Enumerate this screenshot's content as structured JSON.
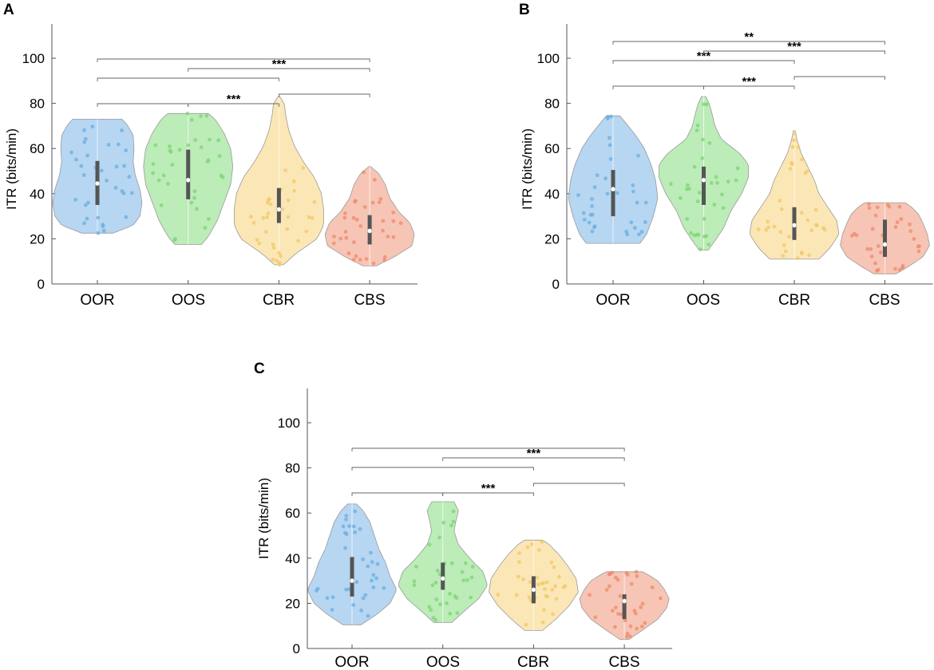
{
  "figure": {
    "panels": [
      "A",
      "B",
      "C"
    ],
    "categories": [
      "OOR",
      "OOS",
      "CBR",
      "CBS"
    ],
    "colors": {
      "OOR": "#9ec8ee",
      "OOS": "#a6e6a0",
      "CBR": "#fadf9e",
      "CBS": "#f4b29c",
      "OOR_dot": "#6aaee0",
      "OOS_dot": "#7dd474",
      "CBR_dot": "#f2c866",
      "CBS_dot": "#ec8a6c",
      "box": "#555555",
      "axis": "#555555",
      "bracket": "#666666"
    }
  },
  "chart_data": [
    {
      "panel": "A",
      "type": "violin",
      "title": "",
      "xlabel": "",
      "ylabel": "ITR (bits/min)",
      "ylim": [
        0,
        115
      ],
      "yticks": [
        0,
        20,
        40,
        60,
        80,
        100
      ],
      "categories": [
        "OOR",
        "OOS",
        "CBR",
        "CBS"
      ],
      "series": [
        {
          "name": "OOR",
          "min": 22.5,
          "q1": 35,
          "median": 44.5,
          "q3": 54.5,
          "max": 73,
          "profile": [
            [
              22.5,
              0.35
            ],
            [
              26,
              0.8
            ],
            [
              30,
              0.95
            ],
            [
              36,
              1
            ],
            [
              42,
              0.95
            ],
            [
              48,
              0.85
            ],
            [
              54,
              0.8
            ],
            [
              60,
              0.82
            ],
            [
              66,
              0.8
            ],
            [
              71,
              0.65
            ],
            [
              73,
              0.55
            ]
          ]
        },
        {
          "name": "OOS",
          "min": 17.5,
          "q1": 37.5,
          "median": 46,
          "q3": 59.5,
          "max": 75.5,
          "profile": [
            [
              17.5,
              0.3
            ],
            [
              21,
              0.45
            ],
            [
              28,
              0.65
            ],
            [
              36,
              0.8
            ],
            [
              44,
              0.95
            ],
            [
              52,
              1
            ],
            [
              60,
              0.95
            ],
            [
              67,
              0.8
            ],
            [
              73,
              0.6
            ],
            [
              75.5,
              0.45
            ]
          ]
        },
        {
          "name": "CBR",
          "min": 8.5,
          "q1": 27,
          "median": 33,
          "q3": 42.5,
          "max": 83,
          "profile": [
            [
              8.5,
              0.1
            ],
            [
              13,
              0.35
            ],
            [
              20,
              0.85
            ],
            [
              26,
              1
            ],
            [
              33,
              1
            ],
            [
              40,
              0.95
            ],
            [
              47,
              0.8
            ],
            [
              54,
              0.55
            ],
            [
              61,
              0.35
            ],
            [
              68,
              0.22
            ],
            [
              75,
              0.15
            ],
            [
              80,
              0.12
            ],
            [
              83,
              0.02
            ]
          ]
        },
        {
          "name": "CBS",
          "min": 8,
          "q1": 17.5,
          "median": 23.5,
          "q3": 30.5,
          "max": 52,
          "profile": [
            [
              8,
              0.15
            ],
            [
              12,
              0.55
            ],
            [
              17,
              0.95
            ],
            [
              22,
              1
            ],
            [
              27,
              0.9
            ],
            [
              32,
              0.65
            ],
            [
              38,
              0.45
            ],
            [
              44,
              0.35
            ],
            [
              49,
              0.2
            ],
            [
              52,
              0.02
            ]
          ]
        }
      ],
      "brackets": [
        {
          "from": "OOR",
          "to": "OOS",
          "label": ""
        },
        {
          "from": "OOS",
          "to": "CBR",
          "label": "***"
        },
        {
          "from": "CBR",
          "to": "CBS",
          "label": ""
        },
        {
          "from": "OOR",
          "to": "CBR",
          "label": ""
        },
        {
          "from": "OOS",
          "to": "CBS",
          "label": "***"
        },
        {
          "from": "OOR",
          "to": "CBS",
          "label": ""
        }
      ]
    },
    {
      "panel": "B",
      "type": "violin",
      "title": "",
      "xlabel": "",
      "ylabel": "ITR (bits/min)",
      "ylim": [
        0,
        115
      ],
      "yticks": [
        0,
        20,
        40,
        60,
        80,
        100
      ],
      "categories": [
        "OOR",
        "OOS",
        "CBR",
        "CBS"
      ],
      "series": [
        {
          "name": "OOR",
          "min": 18,
          "q1": 30,
          "median": 42,
          "q3": 50.5,
          "max": 74.5,
          "profile": [
            [
              18,
              0.6
            ],
            [
              22,
              0.75
            ],
            [
              30,
              0.9
            ],
            [
              38,
              1
            ],
            [
              46,
              0.95
            ],
            [
              53,
              0.85
            ],
            [
              60,
              0.7
            ],
            [
              66,
              0.5
            ],
            [
              71,
              0.3
            ],
            [
              74.5,
              0.15
            ]
          ]
        },
        {
          "name": "OOS",
          "min": 15,
          "q1": 35,
          "median": 46,
          "q3": 52,
          "max": 83,
          "profile": [
            [
              15,
              0.1
            ],
            [
              19,
              0.25
            ],
            [
              25,
              0.45
            ],
            [
              32,
              0.6
            ],
            [
              40,
              0.85
            ],
            [
              47,
              1
            ],
            [
              53,
              1
            ],
            [
              58,
              0.8
            ],
            [
              64,
              0.4
            ],
            [
              70,
              0.25
            ],
            [
              76,
              0.18
            ],
            [
              80,
              0.12
            ],
            [
              83,
              0.05
            ]
          ]
        },
        {
          "name": "CBR",
          "min": 11,
          "q1": 19.5,
          "median": 26,
          "q3": 34,
          "max": 68,
          "profile": [
            [
              11,
              0.55
            ],
            [
              16,
              0.8
            ],
            [
              22,
              1
            ],
            [
              28,
              0.95
            ],
            [
              34,
              0.75
            ],
            [
              40,
              0.55
            ],
            [
              46,
              0.45
            ],
            [
              52,
              0.3
            ],
            [
              58,
              0.15
            ],
            [
              64,
              0.06
            ],
            [
              68,
              0.02
            ]
          ]
        },
        {
          "name": "CBS",
          "min": 4.5,
          "q1": 12,
          "median": 17.5,
          "q3": 28.5,
          "max": 36,
          "profile": [
            [
              4.5,
              0.25
            ],
            [
              8,
              0.55
            ],
            [
              12,
              0.85
            ],
            [
              17,
              1
            ],
            [
              22,
              0.95
            ],
            [
              27,
              0.85
            ],
            [
              31,
              0.75
            ],
            [
              34,
              0.6
            ],
            [
              36,
              0.45
            ]
          ]
        }
      ],
      "brackets": [
        {
          "from": "OOR",
          "to": "OOS",
          "label": ""
        },
        {
          "from": "OOS",
          "to": "CBR",
          "label": "***"
        },
        {
          "from": "CBR",
          "to": "CBS",
          "label": ""
        },
        {
          "from": "OOR",
          "to": "CBR",
          "label": "***"
        },
        {
          "from": "OOS",
          "to": "CBS",
          "label": "***"
        },
        {
          "from": "OOR",
          "to": "CBS",
          "label": "**"
        }
      ]
    },
    {
      "panel": "C",
      "type": "violin",
      "title": "",
      "xlabel": "",
      "ylabel": "ITR (bits/min)",
      "ylim": [
        0,
        115
      ],
      "yticks": [
        0,
        20,
        40,
        60,
        80,
        100
      ],
      "categories": [
        "OOR",
        "OOS",
        "CBR",
        "CBS"
      ],
      "series": [
        {
          "name": "OOR",
          "min": 10.5,
          "q1": 23,
          "median": 30,
          "q3": 40.5,
          "max": 64,
          "profile": [
            [
              10.5,
              0.2
            ],
            [
              15,
              0.55
            ],
            [
              20,
              0.85
            ],
            [
              26,
              1
            ],
            [
              32,
              0.85
            ],
            [
              38,
              0.75
            ],
            [
              44,
              0.6
            ],
            [
              50,
              0.5
            ],
            [
              56,
              0.4
            ],
            [
              61,
              0.25
            ],
            [
              64,
              0.1
            ]
          ]
        },
        {
          "name": "OOS",
          "min": 11.5,
          "q1": 26,
          "median": 31,
          "q3": 38,
          "max": 65,
          "profile": [
            [
              11.5,
              0.2
            ],
            [
              16,
              0.45
            ],
            [
              22,
              0.8
            ],
            [
              28,
              1
            ],
            [
              34,
              0.9
            ],
            [
              40,
              0.6
            ],
            [
              46,
              0.35
            ],
            [
              52,
              0.25
            ],
            [
              57,
              0.3
            ],
            [
              61,
              0.35
            ],
            [
              65,
              0.25
            ]
          ]
        },
        {
          "name": "CBR",
          "min": 8,
          "q1": 20,
          "median": 26,
          "q3": 32,
          "max": 48,
          "profile": [
            [
              8,
              0.2
            ],
            [
              13,
              0.5
            ],
            [
              19,
              0.8
            ],
            [
              25,
              1
            ],
            [
              31,
              0.95
            ],
            [
              37,
              0.75
            ],
            [
              42,
              0.55
            ],
            [
              46,
              0.35
            ],
            [
              48,
              0.2
            ]
          ]
        },
        {
          "name": "CBS",
          "min": 4,
          "q1": 13,
          "median": 21,
          "q3": 24,
          "max": 34,
          "profile": [
            [
              4,
              0.1
            ],
            [
              8,
              0.4
            ],
            [
              13,
              0.75
            ],
            [
              18,
              0.95
            ],
            [
              22,
              1
            ],
            [
              26,
              0.9
            ],
            [
              30,
              0.75
            ],
            [
              33,
              0.5
            ],
            [
              34,
              0.4
            ]
          ]
        }
      ],
      "brackets": [
        {
          "from": "OOR",
          "to": "OOS",
          "label": ""
        },
        {
          "from": "OOS",
          "to": "CBR",
          "label": "***"
        },
        {
          "from": "CBR",
          "to": "CBS",
          "label": ""
        },
        {
          "from": "OOR",
          "to": "CBR",
          "label": ""
        },
        {
          "from": "OOS",
          "to": "CBS",
          "label": "***"
        },
        {
          "from": "OOR",
          "to": "CBS",
          "label": ""
        }
      ]
    }
  ]
}
